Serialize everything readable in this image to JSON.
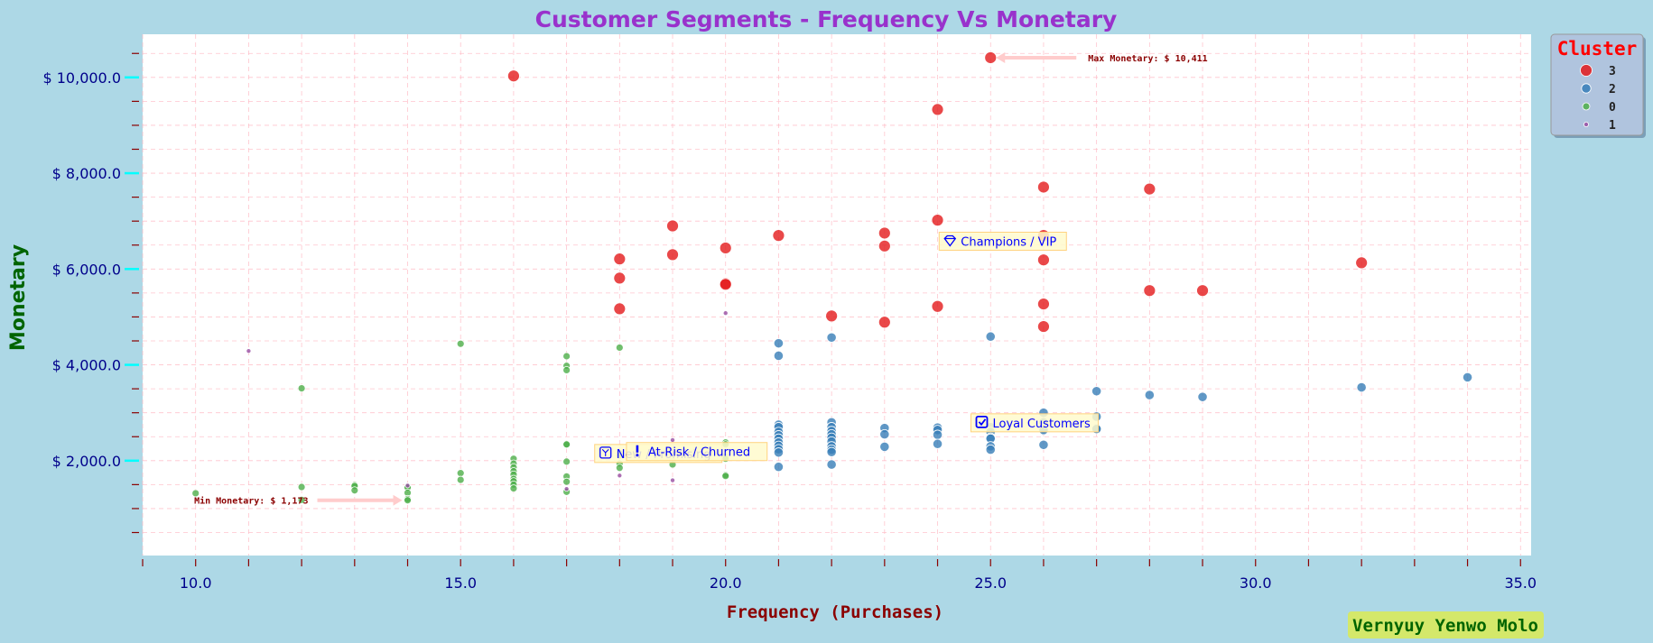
{
  "chart_data": {
    "type": "scatter",
    "title": "Customer Segments - Frequency Vs Monetary",
    "xlabel": "Frequency (Purchases)",
    "ylabel": "Monetary",
    "xlim": [
      9,
      35.2
    ],
    "ylim": [
      20,
      10900
    ],
    "x_ticks": [
      10,
      15,
      20,
      25,
      30,
      35
    ],
    "x_tick_labels": [
      "10.0",
      "15.0",
      "20.0",
      "25.0",
      "30.0",
      "35.0"
    ],
    "y_ticks": [
      2000,
      4000,
      6000,
      8000,
      10000
    ],
    "y_tick_labels": [
      "$ 2,000.0",
      "$ 4,000.0",
      "$ 6,000.0",
      "$ 8,000.0",
      "$ 10,000.0"
    ],
    "grid": true,
    "legend": {
      "title": "Cluster",
      "placement": "upper right outside"
    },
    "series": [
      {
        "name": "3",
        "color": "#e41a1c",
        "size": "large",
        "points": [
          [
            16,
            10030
          ],
          [
            24,
            9330
          ],
          [
            25,
            10411
          ],
          [
            26,
            7710
          ],
          [
            28,
            7670
          ],
          [
            24,
            7020
          ],
          [
            19,
            6900
          ],
          [
            23,
            6750
          ],
          [
            21,
            6700
          ],
          [
            26,
            6700
          ],
          [
            23,
            6480
          ],
          [
            20,
            6440
          ],
          [
            19,
            6300
          ],
          [
            18,
            6210
          ],
          [
            26,
            6190
          ],
          [
            32,
            6130
          ],
          [
            18,
            5810
          ],
          [
            20,
            5700
          ],
          [
            20,
            5680
          ],
          [
            28,
            5550
          ],
          [
            29,
            5550
          ],
          [
            26,
            5270
          ],
          [
            24,
            5220
          ],
          [
            18,
            5170
          ],
          [
            22,
            5020
          ],
          [
            23,
            4890
          ],
          [
            26,
            4800
          ]
        ]
      },
      {
        "name": "2",
        "color": "#377eb8",
        "size": "medium",
        "points": [
          [
            21,
            4450
          ],
          [
            21,
            4190
          ],
          [
            22,
            4570
          ],
          [
            25,
            4590
          ],
          [
            34,
            3740
          ],
          [
            32,
            3530
          ],
          [
            27,
            3450
          ],
          [
            28,
            3370
          ],
          [
            29,
            3330
          ],
          [
            26,
            3000
          ],
          [
            27,
            2920
          ],
          [
            26,
            2800
          ],
          [
            21,
            2750
          ],
          [
            21,
            2700
          ],
          [
            22,
            2800
          ],
          [
            22,
            2700
          ],
          [
            22,
            2620
          ],
          [
            23,
            2680
          ],
          [
            24,
            2690
          ],
          [
            24,
            2640
          ],
          [
            25,
            2700
          ],
          [
            26,
            2660
          ],
          [
            27,
            2680
          ],
          [
            27,
            2660
          ],
          [
            21,
            2600
          ],
          [
            21,
            2530
          ],
          [
            22,
            2550
          ],
          [
            22,
            2480
          ],
          [
            23,
            2550
          ],
          [
            24,
            2540
          ],
          [
            25,
            2600
          ],
          [
            26,
            2640
          ],
          [
            21,
            2460
          ],
          [
            21,
            2380
          ],
          [
            22,
            2400
          ],
          [
            25,
            2480
          ],
          [
            25,
            2460
          ],
          [
            21,
            2310
          ],
          [
            21,
            2240
          ],
          [
            22,
            2300
          ],
          [
            22,
            2230
          ],
          [
            23,
            2290
          ],
          [
            24,
            2350
          ],
          [
            25,
            2300
          ],
          [
            26,
            2330
          ],
          [
            25,
            2230
          ],
          [
            21,
            2170
          ],
          [
            22,
            2180
          ],
          [
            21,
            1870
          ],
          [
            22,
            1920
          ]
        ]
      },
      {
        "name": "0",
        "color": "#4daf4a",
        "size": "small",
        "points": [
          [
            15,
            4440
          ],
          [
            17,
            4180
          ],
          [
            17,
            3980
          ],
          [
            17,
            3890
          ],
          [
            18,
            4360
          ],
          [
            12,
            3510
          ],
          [
            17,
            2330
          ],
          [
            17,
            2340
          ],
          [
            20,
            2380
          ],
          [
            20,
            2340
          ],
          [
            18,
            2150
          ],
          [
            18,
            2110
          ],
          [
            19,
            2050
          ],
          [
            19,
            2010
          ],
          [
            20,
            2080
          ],
          [
            20,
            2040
          ],
          [
            16,
            2040
          ],
          [
            16,
            1940
          ],
          [
            17,
            1980
          ],
          [
            18,
            1940
          ],
          [
            19,
            1920
          ],
          [
            18,
            1850
          ],
          [
            16,
            1860
          ],
          [
            16,
            1780
          ],
          [
            16,
            1710
          ],
          [
            17,
            1670
          ],
          [
            15,
            1740
          ],
          [
            15,
            1600
          ],
          [
            16,
            1620
          ],
          [
            16,
            1570
          ],
          [
            17,
            1560
          ],
          [
            20,
            1700
          ],
          [
            20,
            1680
          ],
          [
            16,
            1500
          ],
          [
            13,
            1490
          ],
          [
            13,
            1470
          ],
          [
            12,
            1450
          ],
          [
            14,
            1460
          ],
          [
            14,
            1440
          ],
          [
            16,
            1420
          ],
          [
            13,
            1380
          ],
          [
            14,
            1330
          ],
          [
            17,
            1350
          ],
          [
            10,
            1320
          ],
          [
            14,
            1200
          ],
          [
            14,
            1173
          ],
          [
            12,
            1180
          ]
        ]
      },
      {
        "name": "1",
        "color": "#984ea3",
        "size": "tiny",
        "points": [
          [
            11,
            4290
          ],
          [
            20,
            5080
          ],
          [
            19,
            2430
          ],
          [
            18,
            1690
          ],
          [
            19,
            1590
          ],
          [
            17,
            1410
          ],
          [
            14,
            1480
          ]
        ]
      }
    ],
    "annotations": [
      {
        "text": "Max Monetary: $ 10,411",
        "x": 25,
        "y": 10411
      },
      {
        "text": "Min Monetary: $ 1,173",
        "x": 14,
        "y": 1173
      }
    ],
    "segment_labels": [
      {
        "text": "Champions / VIP",
        "icon": "diamond-icon",
        "x": 24.2,
        "y": 6580
      },
      {
        "text": "Loyal Customers",
        "icon": "checkbox-icon",
        "x": 24.8,
        "y": 2790
      },
      {
        "text": "At-Risk / Churned",
        "icon": "exclamation-icon",
        "x": 18.3,
        "y": 2190
      },
      {
        "text": "New / Promising",
        "icon": "sprout-icon",
        "x": 17.7,
        "y": 2150
      }
    ]
  },
  "watermark": "Vernyuy Yenwo Molo"
}
